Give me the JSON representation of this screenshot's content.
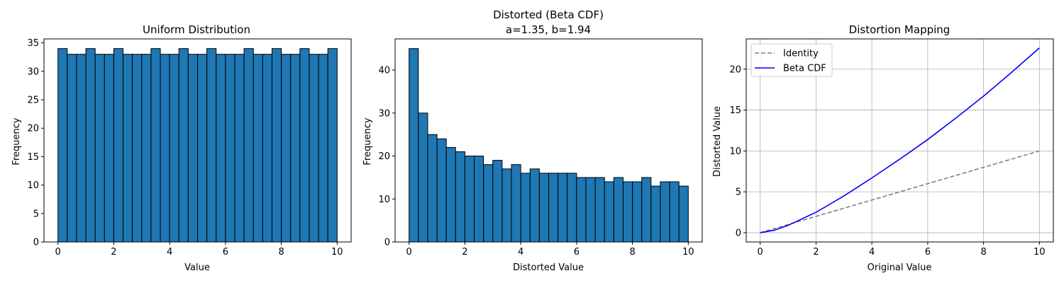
{
  "chart_data": [
    {
      "type": "bar",
      "title": "Uniform Distribution",
      "xlabel": "Value",
      "ylabel": "Frequency",
      "xlim": [
        -0.5,
        10.5
      ],
      "ylim": [
        0,
        35.7
      ],
      "bin_range": [
        0,
        10
      ],
      "xticks": [
        0,
        2,
        4,
        6,
        8,
        10
      ],
      "yticks": [
        0,
        5,
        10,
        15,
        20,
        25,
        30,
        35
      ],
      "grid": false,
      "bar_color": "#1f77b4",
      "edge_color": "#000000",
      "values": [
        34,
        33,
        33,
        34,
        33,
        33,
        34,
        33,
        33,
        33,
        34,
        33,
        33,
        34,
        33,
        33,
        34,
        33,
        33,
        33,
        34,
        33,
        33,
        34,
        33,
        33,
        34,
        33,
        33,
        34
      ]
    },
    {
      "type": "bar",
      "title": "Distorted (Beta CDF)",
      "subtitle": "a=1.35, b=1.94",
      "xlabel": "Distorted Value",
      "ylabel": "Frequency",
      "xlim": [
        -0.5,
        10.5
      ],
      "ylim": [
        0,
        47.25
      ],
      "bin_range": [
        0,
        10
      ],
      "xticks": [
        0,
        2,
        4,
        6,
        8,
        10
      ],
      "yticks": [
        0,
        10,
        20,
        30,
        40
      ],
      "grid": false,
      "bar_color": "#1f77b4",
      "edge_color": "#000000",
      "values": [
        45,
        30,
        25,
        24,
        22,
        21,
        20,
        20,
        18,
        19,
        17,
        18,
        16,
        17,
        16,
        16,
        16,
        16,
        15,
        15,
        15,
        14,
        15,
        14,
        14,
        15,
        13,
        14,
        14,
        13
      ]
    },
    {
      "type": "line",
      "title": "Distortion Mapping",
      "xlabel": "Original Value",
      "ylabel": "Distorted Value",
      "xlim": [
        -0.5,
        10.5
      ],
      "ylim": [
        -1.13,
        23.7
      ],
      "xticks": [
        0,
        2,
        4,
        6,
        8,
        10
      ],
      "yticks": [
        0,
        5,
        10,
        15,
        20
      ],
      "grid": true,
      "legend_position": "top-left",
      "series": [
        {
          "name": "Identity",
          "color": "#808080",
          "style": "dashed",
          "x": [
            0,
            10
          ],
          "y": [
            0,
            10
          ]
        },
        {
          "name": "Beta CDF",
          "color": "#0000ff",
          "style": "solid",
          "x": [
            0,
            0.5,
            1,
            1.5,
            2,
            3,
            4,
            5,
            6,
            7,
            8,
            9,
            10
          ],
          "y": [
            0,
            0.3,
            0.9,
            1.7,
            2.5,
            4.5,
            6.7,
            9.0,
            11.4,
            14.0,
            16.7,
            19.6,
            22.6
          ]
        }
      ]
    }
  ]
}
